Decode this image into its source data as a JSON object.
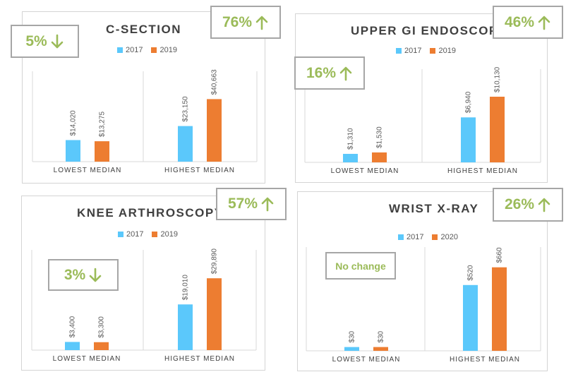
{
  "colors": {
    "s2017": "#5bc8fb",
    "s_second": "#ed7d31",
    "accent": "#9bbb59",
    "frame": "#a6a6a6"
  },
  "chart_data": [
    {
      "id": "csection",
      "type": "bar",
      "title": "C-SECTION",
      "categories": [
        "LOWEST MEDIAN",
        "HIGHEST MEDIAN"
      ],
      "series": [
        {
          "name": "2017",
          "values": [
            14020,
            23150
          ],
          "labels": [
            "$14,020",
            "$23,150"
          ]
        },
        {
          "name": "2019",
          "values": [
            13275,
            40663
          ],
          "labels": [
            "$13,275",
            "$40,663"
          ]
        }
      ],
      "ylim": [
        0,
        56000
      ],
      "changes": [
        {
          "text": "5%",
          "direction": "down"
        },
        {
          "text": "76%",
          "direction": "up"
        }
      ]
    },
    {
      "id": "endoscopy",
      "type": "bar",
      "title": "UPPER GI ENDOSCOPY",
      "categories": [
        "LOWEST MEDIAN",
        "HIGHEST MEDIAN"
      ],
      "series": [
        {
          "name": "2017",
          "values": [
            1310,
            6940
          ],
          "labels": [
            "$1,310",
            "$6,940"
          ]
        },
        {
          "name": "2019",
          "values": [
            1530,
            10130
          ],
          "labels": [
            "$1,530",
            "$10,130"
          ]
        }
      ],
      "ylim": [
        0,
        12200
      ],
      "changes": [
        {
          "text": "16%",
          "direction": "up"
        },
        {
          "text": "46%",
          "direction": "up"
        }
      ]
    },
    {
      "id": "knee",
      "type": "bar",
      "title": "KNEE ARTHROSCOPY",
      "categories": [
        "LOWEST MEDIAN",
        "HIGHEST MEDIAN"
      ],
      "series": [
        {
          "name": "2017",
          "values": [
            3400,
            19010
          ],
          "labels": [
            "$3,400",
            "$19,010"
          ]
        },
        {
          "name": "2019",
          "values": [
            3300,
            29890
          ],
          "labels": [
            "$3,300",
            "$29,890"
          ]
        }
      ],
      "ylim": [
        0,
        37000
      ],
      "changes": [
        {
          "text": "3%",
          "direction": "down"
        },
        {
          "text": "57%",
          "direction": "up"
        }
      ]
    },
    {
      "id": "wrist",
      "type": "bar",
      "title": "WRIST X-RAY",
      "categories": [
        "LOWEST MEDIAN",
        "HIGHEST MEDIAN"
      ],
      "series": [
        {
          "name": "2017",
          "values": [
            30,
            520
          ],
          "labels": [
            "$30",
            "$520"
          ]
        },
        {
          "name": "2020",
          "values": [
            30,
            660
          ],
          "labels": [
            "$30",
            "$660"
          ]
        }
      ],
      "ylim": [
        0,
        820
      ],
      "changes": [
        {
          "text": "No change",
          "direction": "none"
        },
        {
          "text": "26%",
          "direction": "up"
        }
      ]
    }
  ]
}
